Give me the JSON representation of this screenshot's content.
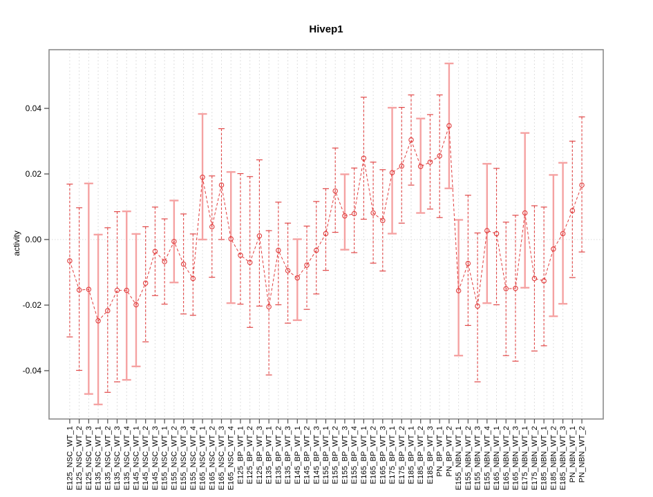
{
  "title": "Hivep1",
  "chart_data": {
    "type": "scatter",
    "title": "Hivep1",
    "xlabel": "",
    "ylabel": "activity",
    "yticks": [
      0.04,
      0.02,
      0.0,
      -0.02,
      -0.04
    ],
    "ylim": [
      -0.054,
      0.057
    ],
    "grid": "vertical-dashed",
    "zero_line": true,
    "legend_position": "none",
    "series_line_style": "dashed",
    "colors": {
      "point": "#e03c3c",
      "bar_red": "#e04545",
      "bar_pink": "#f5a2a2",
      "grid": "#dedede",
      "zero": "#d9d9d9",
      "box": "#8a8a8a",
      "tick": "#4d4d4d",
      "text": "#000000"
    },
    "points": [
      {
        "label": "E125_NSC_WT_1",
        "value": -0.0065,
        "lo": -0.0297,
        "hi": 0.0169,
        "bar": "red"
      },
      {
        "label": "E125_NSC_WT_2",
        "value": -0.0154,
        "lo": -0.0399,
        "hi": 0.0097,
        "bar": "red"
      },
      {
        "label": "E125_NSC_WT_3",
        "value": -0.0152,
        "lo": -0.0471,
        "hi": 0.0171,
        "bar": "pink"
      },
      {
        "label": "E135_NSC_WT_1",
        "value": -0.0248,
        "lo": -0.0503,
        "hi": 0.0015,
        "bar": "pink"
      },
      {
        "label": "E135_NSC_WT_2",
        "value": -0.0217,
        "lo": -0.0466,
        "hi": 0.0036,
        "bar": "red"
      },
      {
        "label": "E135_NSC_WT_3",
        "value": -0.0155,
        "lo": -0.0434,
        "hi": 0.0085,
        "bar": "red"
      },
      {
        "label": "E135_NSC_WT_4",
        "value": -0.0155,
        "lo": -0.0428,
        "hi": 0.0086,
        "bar": "pink"
      },
      {
        "label": "E145_NSC_WT_1",
        "value": -0.0199,
        "lo": -0.0387,
        "hi": 0.0017,
        "bar": "pink"
      },
      {
        "label": "E145_NSC_WT_2",
        "value": -0.0133,
        "lo": -0.0312,
        "hi": 0.0039,
        "bar": "red"
      },
      {
        "label": "E145_NSC_WT_3",
        "value": -0.0036,
        "lo": -0.0171,
        "hi": 0.0099,
        "bar": "red"
      },
      {
        "label": "E155_NSC_WT_1",
        "value": -0.0067,
        "lo": -0.0197,
        "hi": 0.0063,
        "bar": "red"
      },
      {
        "label": "E155_NSC_WT_2",
        "value": -0.0006,
        "lo": -0.0131,
        "hi": 0.0119,
        "bar": "pink"
      },
      {
        "label": "E155_NSC_WT_3",
        "value": -0.0075,
        "lo": -0.0227,
        "hi": 0.0078,
        "bar": "red"
      },
      {
        "label": "E155_NSC_WT_4",
        "value": -0.0119,
        "lo": -0.0231,
        "hi": 0.0017,
        "bar": "red"
      },
      {
        "label": "E165_NSC_WT_1",
        "value": 0.019,
        "lo": 0.0,
        "hi": 0.0383,
        "bar": "pink"
      },
      {
        "label": "E165_NSC_WT_2",
        "value": 0.0039,
        "lo": -0.0115,
        "hi": 0.0194,
        "bar": "red"
      },
      {
        "label": "E165_NSC_WT_3",
        "value": 0.0166,
        "lo": 0.0,
        "hi": 0.0338,
        "bar": "red"
      },
      {
        "label": "E165_NSC_WT_4",
        "value": 0.0002,
        "lo": -0.0194,
        "hi": 0.0206,
        "bar": "pink"
      },
      {
        "label": "E125_BP_WT_1",
        "value": -0.0048,
        "lo": -0.0197,
        "hi": 0.0201,
        "bar": "red"
      },
      {
        "label": "E125_BP_WT_2",
        "value": -0.007,
        "lo": -0.0268,
        "hi": 0.0192,
        "bar": "red"
      },
      {
        "label": "E125_BP_WT_3",
        "value": 0.0011,
        "lo": -0.0203,
        "hi": 0.0243,
        "bar": "red"
      },
      {
        "label": "E135_BP_WT_1",
        "value": -0.0205,
        "lo": -0.0413,
        "hi": 0.0027,
        "bar": "red"
      },
      {
        "label": "E135_BP_WT_2",
        "value": -0.0033,
        "lo": -0.0199,
        "hi": 0.0114,
        "bar": "red"
      },
      {
        "label": "E135_BP_WT_3",
        "value": -0.0095,
        "lo": -0.0255,
        "hi": 0.005,
        "bar": "red"
      },
      {
        "label": "E145_BP_WT_1",
        "value": -0.0117,
        "lo": -0.0246,
        "hi": 0.0001,
        "bar": "pink"
      },
      {
        "label": "E145_BP_WT_2",
        "value": -0.0078,
        "lo": -0.0213,
        "hi": 0.0041,
        "bar": "red"
      },
      {
        "label": "E145_BP_WT_3",
        "value": -0.0033,
        "lo": -0.0166,
        "hi": 0.0116,
        "bar": "red"
      },
      {
        "label": "E155_BP_WT_1",
        "value": 0.0018,
        "lo": -0.0094,
        "hi": 0.0155,
        "bar": "red"
      },
      {
        "label": "E155_BP_WT_2",
        "value": 0.0148,
        "lo": 0.0022,
        "hi": 0.0279,
        "bar": "red"
      },
      {
        "label": "E155_BP_WT_3",
        "value": 0.0072,
        "lo": -0.0031,
        "hi": 0.0199,
        "bar": "pink"
      },
      {
        "label": "E155_BP_WT_4",
        "value": 0.0079,
        "lo": -0.004,
        "hi": 0.0218,
        "bar": "red"
      },
      {
        "label": "E165_BP_WT_1",
        "value": 0.0248,
        "lo": 0.0062,
        "hi": 0.0434,
        "bar": "red"
      },
      {
        "label": "E165_BP_WT_2",
        "value": 0.0081,
        "lo": -0.0072,
        "hi": 0.0236,
        "bar": "red"
      },
      {
        "label": "E165_BP_WT_3",
        "value": 0.0058,
        "lo": -0.0096,
        "hi": 0.0213,
        "bar": "red"
      },
      {
        "label": "E175_BP_WT_1",
        "value": 0.0204,
        "lo": 0.0018,
        "hi": 0.0402,
        "bar": "pink"
      },
      {
        "label": "E175_BP_WT_2",
        "value": 0.0224,
        "lo": 0.005,
        "hi": 0.0403,
        "bar": "red"
      },
      {
        "label": "E185_BP_WT_1",
        "value": 0.0304,
        "lo": 0.0166,
        "hi": 0.0441,
        "bar": "red"
      },
      {
        "label": "E185_BP_WT_2",
        "value": 0.0223,
        "lo": 0.0081,
        "hi": 0.0369,
        "bar": "pink"
      },
      {
        "label": "E185_BP_WT_3",
        "value": 0.0236,
        "lo": 0.0093,
        "hi": 0.0381,
        "bar": "red"
      },
      {
        "label": "PN_BP_WT_1",
        "value": 0.0255,
        "lo": 0.0067,
        "hi": 0.0441,
        "bar": "red"
      },
      {
        "label": "PN_BP_WT_2",
        "value": 0.0347,
        "lo": 0.0156,
        "hi": 0.0537,
        "bar": "pink"
      },
      {
        "label": "E155_NBN_WT_1",
        "value": -0.0156,
        "lo": -0.0354,
        "hi": 0.006,
        "bar": "pink"
      },
      {
        "label": "E155_NBN_WT_2",
        "value": -0.0073,
        "lo": -0.0262,
        "hi": 0.0135,
        "bar": "red"
      },
      {
        "label": "E155_NBN_WT_3",
        "value": -0.0203,
        "lo": -0.0434,
        "hi": 0.002,
        "bar": "red"
      },
      {
        "label": "E155_NBN_WT_4",
        "value": 0.0027,
        "lo": -0.0194,
        "hi": 0.0231,
        "bar": "pink"
      },
      {
        "label": "E165_NBN_WT_1",
        "value": 0.0018,
        "lo": -0.0199,
        "hi": 0.0217,
        "bar": "red"
      },
      {
        "label": "E165_NBN_WT_2",
        "value": -0.015,
        "lo": -0.0354,
        "hi": 0.0053,
        "bar": "red"
      },
      {
        "label": "E165_NBN_WT_3",
        "value": -0.0149,
        "lo": -0.0371,
        "hi": 0.0074,
        "bar": "red"
      },
      {
        "label": "E175_NBN_WT_1",
        "value": 0.0081,
        "lo": -0.0147,
        "hi": 0.0325,
        "bar": "pink"
      },
      {
        "label": "E175_NBN_WT_2",
        "value": -0.0119,
        "lo": -0.034,
        "hi": 0.0103,
        "bar": "red"
      },
      {
        "label": "E185_NBN_WT_1",
        "value": -0.0126,
        "lo": -0.0324,
        "hi": 0.0099,
        "bar": "red"
      },
      {
        "label": "E185_NBN_WT_2",
        "value": -0.0029,
        "lo": -0.0234,
        "hi": 0.0197,
        "bar": "pink"
      },
      {
        "label": "E185_NBN_WT_3",
        "value": 0.0018,
        "lo": -0.0196,
        "hi": 0.0234,
        "bar": "pink"
      },
      {
        "label": "PN_NBN_WT_1",
        "value": 0.0088,
        "lo": -0.0116,
        "hi": 0.03,
        "bar": "red"
      },
      {
        "label": "PN_NBN_WT_2",
        "value": 0.0166,
        "lo": -0.0038,
        "hi": 0.0374,
        "bar": "red"
      }
    ]
  }
}
